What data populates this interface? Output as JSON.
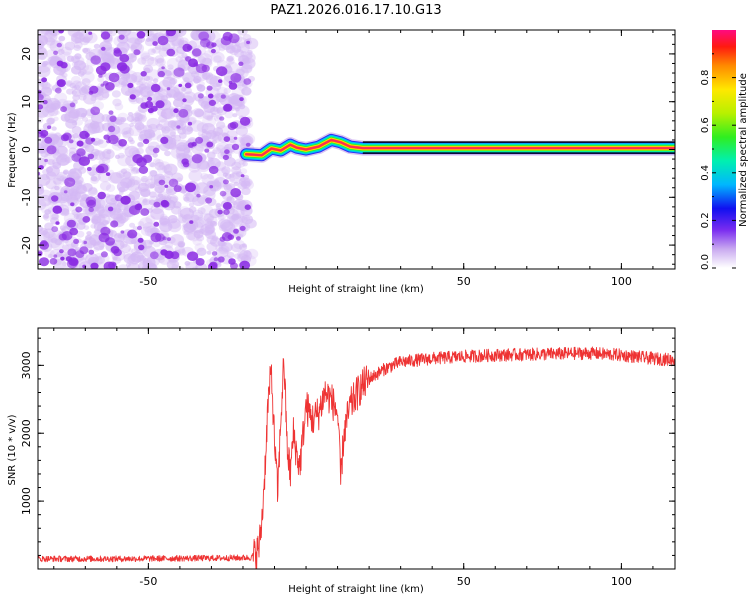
{
  "title": "PAZ1.2026.016.17.10.G13",
  "colors": {
    "snr_line": "#ee3333",
    "scatter_light": "#d4b8f4",
    "scatter_dark": "#8a2be2",
    "signal_core": "#ff2a55"
  },
  "chart_data": [
    {
      "type": "heatmap",
      "name": "spectrogram",
      "xlabel": "Height of straight line (km)",
      "ylabel": "Frequency (Hz)",
      "xlim": [
        -85,
        117
      ],
      "ylim": [
        -25,
        25
      ],
      "xticks": [
        -50,
        50,
        100
      ],
      "yticks": [
        20,
        10,
        0,
        -10,
        -20
      ],
      "xtick_labels": [
        "-50",
        "50",
        "100"
      ],
      "ytick_labels": [
        "20",
        "10",
        "0",
        "-10",
        "-20"
      ],
      "noise_region_x": [
        -85,
        -19
      ],
      "signal_start_x": -19,
      "signal_track": [
        {
          "x": -19,
          "y": -1.0
        },
        {
          "x": -14,
          "y": -1.2
        },
        {
          "x": -11,
          "y": 0.2
        },
        {
          "x": -8,
          "y": -0.2
        },
        {
          "x": -5,
          "y": 1.0
        },
        {
          "x": -3,
          "y": 0.4
        },
        {
          "x": 0,
          "y": 0.0
        },
        {
          "x": 4,
          "y": 0.6
        },
        {
          "x": 8,
          "y": 2.0
        },
        {
          "x": 11,
          "y": 1.5
        },
        {
          "x": 14,
          "y": 0.6
        },
        {
          "x": 18,
          "y": 0.3
        },
        {
          "x": 117,
          "y": 0.3
        }
      ],
      "colorbar": {
        "label": "Normalized spectral amplitude",
        "ticks": [
          0.0,
          0.2,
          0.4,
          0.6,
          0.8
        ],
        "tick_labels": [
          "0.0",
          "0.2",
          "0.4",
          "0.6",
          "0.8"
        ],
        "range": [
          0,
          1
        ]
      }
    },
    {
      "type": "line",
      "name": "snr",
      "xlabel": "Height of straight line (km)",
      "ylabel": "SNR (10 * v/v)",
      "xlim": [
        -85,
        117
      ],
      "ylim": [
        0,
        3550
      ],
      "xticks": [
        -50,
        50,
        100
      ],
      "yticks": [
        1000,
        2000,
        3000
      ],
      "xtick_labels": [
        "-50",
        "50",
        "100"
      ],
      "ytick_labels": [
        "1000",
        "2000",
        "3000"
      ],
      "series": [
        {
          "name": "SNR",
          "points": [
            [
              -85,
              150
            ],
            [
              -60,
              150
            ],
            [
              -30,
              160
            ],
            [
              -20,
              165
            ],
            [
              -17,
              170
            ],
            [
              -15,
              300
            ],
            [
              -14,
              700
            ],
            [
              -13,
              1500
            ],
            [
              -12,
              2500
            ],
            [
              -11,
              2900
            ],
            [
              -10,
              1900
            ],
            [
              -9,
              1100
            ],
            [
              -8,
              2200
            ],
            [
              -7,
              3100
            ],
            [
              -6,
              1800
            ],
            [
              -5,
              1400
            ],
            [
              -4,
              2000
            ],
            [
              -3,
              1700
            ],
            [
              -2,
              1500
            ],
            [
              0,
              2400
            ],
            [
              2,
              2200
            ],
            [
              4,
              2300
            ],
            [
              6,
              2600
            ],
            [
              8,
              2500
            ],
            [
              10,
              2300
            ],
            [
              11,
              1300
            ],
            [
              12,
              2000
            ],
            [
              14,
              2400
            ],
            [
              17,
              2650
            ],
            [
              20,
              2800
            ],
            [
              25,
              2950
            ],
            [
              30,
              3050
            ],
            [
              40,
              3100
            ],
            [
              50,
              3130
            ],
            [
              60,
              3150
            ],
            [
              70,
              3160
            ],
            [
              80,
              3170
            ],
            [
              90,
              3180
            ],
            [
              100,
              3150
            ],
            [
              110,
              3100
            ],
            [
              117,
              3080
            ]
          ]
        }
      ]
    }
  ]
}
